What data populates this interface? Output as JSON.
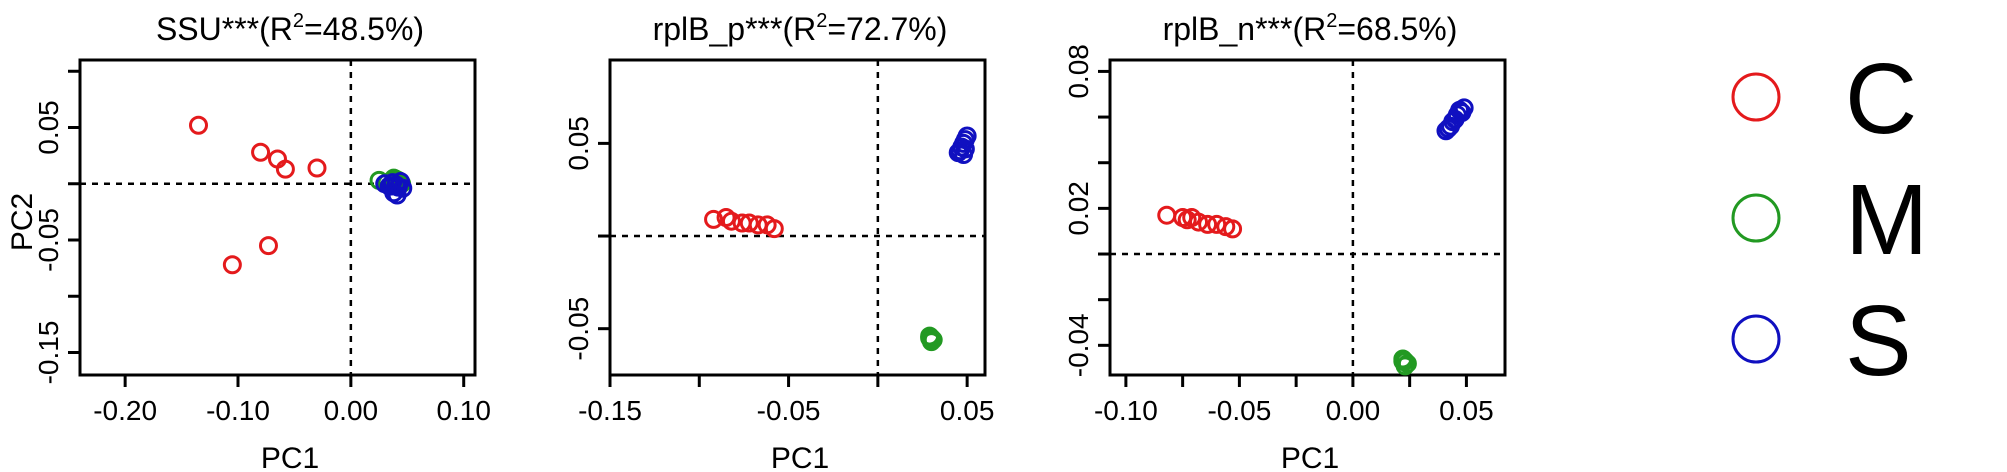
{
  "chart_data": [
    {
      "type": "scatter",
      "title": "SSU***(R",
      "title_sup": "2",
      "title_tail": "=48.5%)",
      "xlabel": "PC1",
      "ylabel": "PC2",
      "xlim": [
        -0.24,
        0.11
      ],
      "ylim": [
        -0.17,
        0.11
      ],
      "xticks": [
        -0.2,
        -0.1,
        0.0,
        0.1
      ],
      "xtick_labels": [
        "-0.20",
        "-0.10",
        "0.00",
        "0.10"
      ],
      "yticks": [
        -0.15,
        -0.1,
        -0.05,
        0.0,
        0.05,
        0.1
      ],
      "ytick_labels": [
        "-0.15",
        "",
        "-0.05",
        "",
        "0.05",
        ""
      ],
      "ref_x": 0.0,
      "ref_y": 0.0,
      "series": [
        {
          "name": "C",
          "x": [
            -0.135,
            -0.08,
            -0.065,
            -0.058,
            -0.03,
            -0.073,
            -0.105
          ],
          "y": [
            0.052,
            0.028,
            0.022,
            0.013,
            0.014,
            -0.055,
            -0.072
          ]
        },
        {
          "name": "M",
          "x": [
            0.025,
            0.032,
            0.038,
            0.042,
            0.045,
            0.04
          ],
          "y": [
            0.003,
            0.001,
            0.005,
            0.003,
            0.0,
            0.004
          ]
        },
        {
          "name": "S",
          "x": [
            0.03,
            0.034,
            0.037,
            0.04,
            0.042,
            0.044,
            0.046,
            0.038,
            0.041,
            0.036
          ],
          "y": [
            0.0,
            -0.002,
            0.001,
            -0.001,
            -0.003,
            0.002,
            -0.004,
            -0.008,
            -0.01,
            -0.002
          ]
        }
      ]
    },
    {
      "type": "scatter",
      "title": "rplB_p***(R",
      "title_sup": "2",
      "title_tail": "=72.7%)",
      "xlabel": "PC1",
      "ylabel": "",
      "xlim": [
        -0.15,
        0.06
      ],
      "ylim": [
        -0.075,
        0.095
      ],
      "xticks": [
        -0.15,
        -0.1,
        -0.05,
        0.0,
        0.05
      ],
      "xtick_labels": [
        "-0.15",
        "",
        "-0.05",
        "",
        "0.05"
      ],
      "yticks": [
        -0.05,
        0.0,
        0.05
      ],
      "ytick_labels": [
        "-0.05",
        "",
        "0.05"
      ],
      "ref_x": 0.0,
      "ref_y": 0.0,
      "series": [
        {
          "name": "C",
          "x": [
            -0.092,
            -0.085,
            -0.082,
            -0.076,
            -0.072,
            -0.067,
            -0.062,
            -0.058
          ],
          "y": [
            0.009,
            0.01,
            0.008,
            0.007,
            0.007,
            0.006,
            0.006,
            0.004
          ]
        },
        {
          "name": "M",
          "x": [
            0.029,
            0.03,
            0.031,
            0.03,
            0.029
          ],
          "y": [
            -0.054,
            -0.055,
            -0.056,
            -0.057,
            -0.055
          ]
        },
        {
          "name": "S",
          "x": [
            0.045,
            0.046,
            0.047,
            0.048,
            0.049,
            0.05,
            0.049,
            0.048
          ],
          "y": [
            0.045,
            0.046,
            0.048,
            0.05,
            0.052,
            0.054,
            0.047,
            0.044
          ]
        }
      ]
    },
    {
      "type": "scatter",
      "title": "rplB_n***(R",
      "title_sup": "2",
      "title_tail": "=68.5%)",
      "xlabel": "PC1",
      "ylabel": "",
      "xlim": [
        -0.107,
        0.067
      ],
      "ylim": [
        -0.053,
        0.085
      ],
      "xticks": [
        -0.1,
        -0.075,
        -0.05,
        -0.025,
        0.0,
        0.025,
        0.05
      ],
      "xtick_labels": [
        "-0.10",
        "",
        "-0.05",
        "",
        "0.00",
        "",
        "0.05"
      ],
      "yticks": [
        -0.04,
        -0.02,
        0.0,
        0.02,
        0.04,
        0.06,
        0.08
      ],
      "ytick_labels": [
        "-0.04",
        "",
        "",
        "0.02",
        "",
        "",
        "0.08"
      ],
      "ref_x": 0.0,
      "ref_y": 0.0,
      "series": [
        {
          "name": "C",
          "x": [
            -0.082,
            -0.075,
            -0.073,
            -0.071,
            -0.068,
            -0.064,
            -0.06,
            -0.056,
            -0.053
          ],
          "y": [
            0.017,
            0.016,
            0.015,
            0.016,
            0.014,
            0.013,
            0.013,
            0.012,
            0.011
          ]
        },
        {
          "name": "M",
          "x": [
            0.022,
            0.023,
            0.024,
            0.023,
            0.022
          ],
          "y": [
            -0.046,
            -0.047,
            -0.048,
            -0.049,
            -0.047
          ]
        },
        {
          "name": "S",
          "x": [
            0.041,
            0.042,
            0.043,
            0.044,
            0.045,
            0.046,
            0.047,
            0.048,
            0.049
          ],
          "y": [
            0.054,
            0.055,
            0.056,
            0.058,
            0.059,
            0.061,
            0.063,
            0.062,
            0.064
          ]
        }
      ]
    }
  ],
  "legend": {
    "placement": "right",
    "items": [
      {
        "name": "C",
        "color": "#e41a1c"
      },
      {
        "name": "M",
        "color": "#229922"
      },
      {
        "name": "S",
        "color": "#1010c0"
      }
    ]
  },
  "colors": {
    "C": "#e41a1c",
    "M": "#229922",
    "S": "#1010c0"
  }
}
